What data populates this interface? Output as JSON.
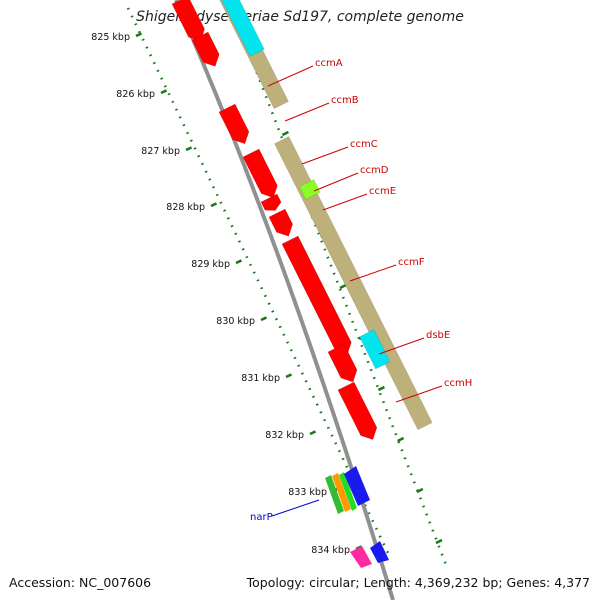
{
  "title": "Shigella dysenteriae Sd197, complete genome",
  "footer": {
    "accession": "Accession: NC_007606",
    "topology": "Topology: circular; Length: 4,369,232 bp; Genes: 4,377"
  },
  "colors": {
    "cds": "#ff0000",
    "cds_light": "#ffb0b0",
    "operon": "#bdb07a",
    "cyan": "#00e5ee",
    "green": "#88ff22",
    "label_red": "#d10000",
    "label_blue": "#0000cc",
    "tick_green": "#1a7a1a",
    "backbone": "#909090"
  },
  "ticks": [
    {
      "label": "825 kbp"
    },
    {
      "label": "826 kbp"
    },
    {
      "label": "827 kbp"
    },
    {
      "label": "828 kbp"
    },
    {
      "label": "829 kbp"
    },
    {
      "label": "830 kbp"
    },
    {
      "label": "831 kbp"
    },
    {
      "label": "832 kbp"
    },
    {
      "label": "833 kbp"
    },
    {
      "label": "834 kbp"
    }
  ],
  "genes": [
    {
      "label": "ccmA",
      "color": "red"
    },
    {
      "label": "ccmB",
      "color": "red"
    },
    {
      "label": "ccmC",
      "color": "red"
    },
    {
      "label": "ccmD",
      "color": "red"
    },
    {
      "label": "ccmE",
      "color": "red"
    },
    {
      "label": "ccmF",
      "color": "red"
    },
    {
      "label": "dsbE",
      "color": "red"
    },
    {
      "label": "ccmH",
      "color": "red"
    },
    {
      "label": "narP",
      "color": "blue"
    }
  ]
}
